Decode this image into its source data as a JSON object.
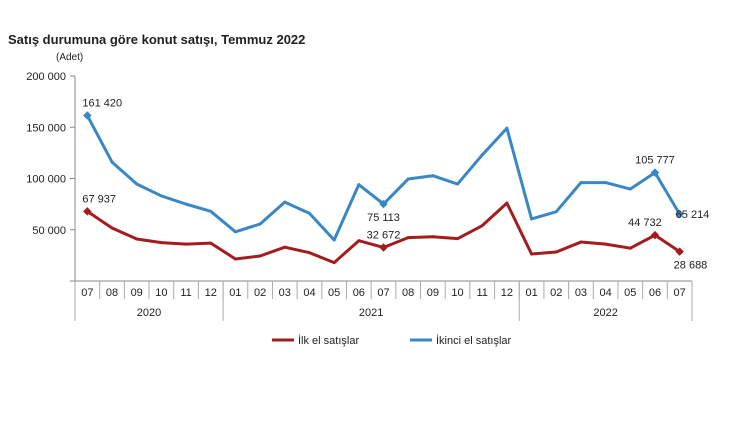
{
  "chart_data": {
    "type": "line",
    "title": "Satış durumuna göre konut satışı, Temmuz 2022",
    "ylabel": "(Adet)",
    "xlabel": "",
    "ylim": [
      0,
      200000
    ],
    "yticks": [
      0,
      50000,
      100000,
      150000,
      200000
    ],
    "ytick_labels": [
      "",
      "50 000",
      "100 000",
      "150 000",
      "200 000"
    ],
    "grid": false,
    "legend_position": "bottom",
    "categories": [
      "07",
      "08",
      "09",
      "10",
      "11",
      "12",
      "01",
      "02",
      "03",
      "04",
      "05",
      "06",
      "07",
      "08",
      "09",
      "10",
      "11",
      "12",
      "01",
      "02",
      "03",
      "04",
      "05",
      "06",
      "07"
    ],
    "year_groups": [
      {
        "label": "2020",
        "count": 6
      },
      {
        "label": "2021",
        "count": 12
      },
      {
        "label": "2022",
        "count": 7
      }
    ],
    "series": [
      {
        "name": "İlk el satışlar",
        "color": "#a31d1f",
        "values": [
          67937,
          51700,
          41000,
          37400,
          36000,
          37000,
          21500,
          24400,
          33000,
          27600,
          17900,
          39300,
          32672,
          42300,
          43200,
          41300,
          54000,
          76000,
          26300,
          28300,
          38000,
          36000,
          32000,
          44732,
          28688
        ],
        "labels": [
          {
            "index": 0,
            "text": "67 937"
          },
          {
            "index": 12,
            "text": "32 672"
          },
          {
            "index": 23,
            "text": "44 732"
          },
          {
            "index": 24,
            "text": "28 688"
          }
        ]
      },
      {
        "name": "İkinci el satışlar",
        "color": "#3a87c6",
        "values": [
          161420,
          116000,
          94600,
          83000,
          75000,
          68000,
          48000,
          55600,
          77000,
          66000,
          40000,
          94000,
          75113,
          99500,
          102700,
          94600,
          123000,
          149000,
          60500,
          67600,
          96000,
          96000,
          89700,
          105777,
          65214
        ],
        "labels": [
          {
            "index": 0,
            "text": "161 420"
          },
          {
            "index": 12,
            "text": "75 113"
          },
          {
            "index": 23,
            "text": "105 777"
          },
          {
            "index": 24,
            "text": "65 214"
          }
        ]
      }
    ]
  }
}
